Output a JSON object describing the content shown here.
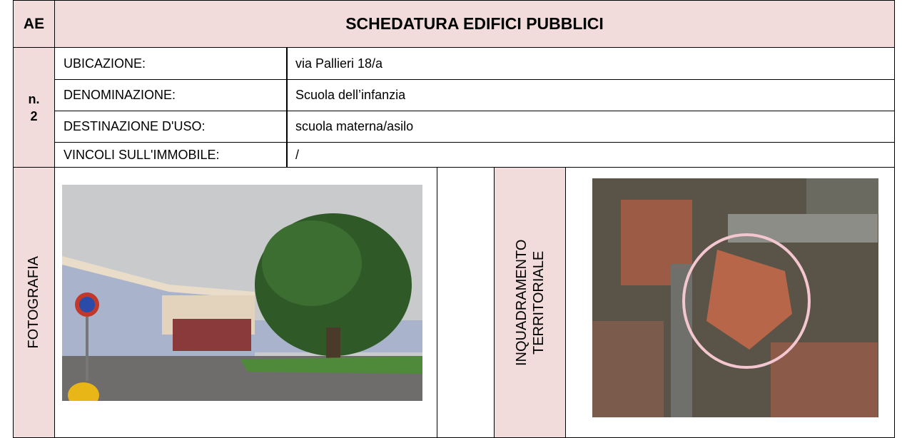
{
  "header": {
    "code": "AE",
    "title": "SCHEDATURA EDIFICI PUBBLICI"
  },
  "number": {
    "label": "n.",
    "value": "2"
  },
  "fields": [
    {
      "label": "UBICAZIONE:",
      "value": "via Pallieri 18/a"
    },
    {
      "label": "DENOMINAZIONE:",
      "value": "Scuola dell’infanzia"
    },
    {
      "label": "DESTINAZIONE D'USO:",
      "value": "scuola materna/asilo"
    },
    {
      "label": "VINCOLI SULL'IMMOBILE:",
      "value": "/"
    }
  ],
  "sections": {
    "photo": "FOTOGRAFIA",
    "map": "INQUADRAMENTO TERRITORIALE"
  }
}
